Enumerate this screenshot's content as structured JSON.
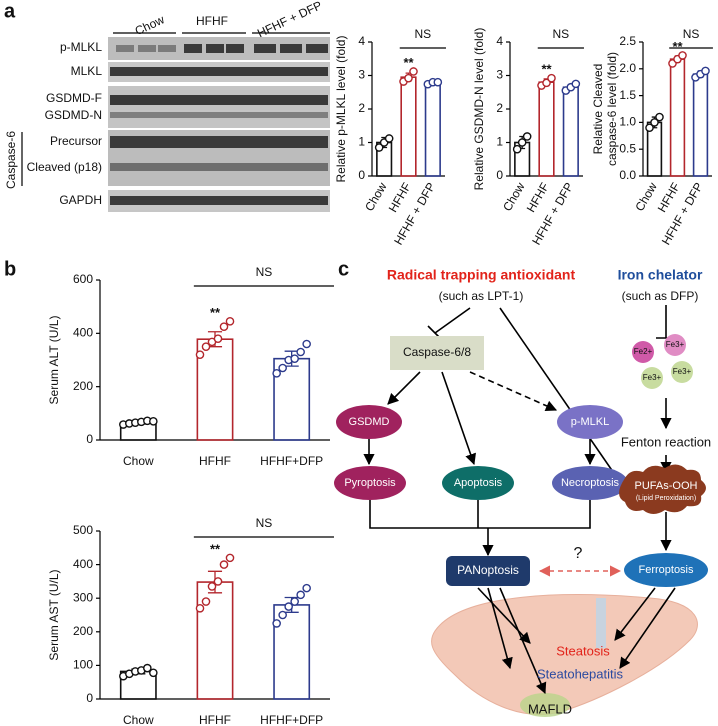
{
  "panel_labels": [
    "a",
    "b",
    "c"
  ],
  "blot": {
    "groups": [
      "Chow",
      "HFHF",
      "HFHF + DFP"
    ],
    "rows": [
      "p-MLKL",
      "MLKL",
      "GSDMD-F",
      "GSDMD-N",
      "Precursor",
      "Cleaved (p18)",
      "GAPDH"
    ],
    "side_label": "Caspase-6"
  },
  "chart_data": [
    {
      "type": "bar",
      "ylabel": [
        "Relative p-MLKL level (fold)"
      ],
      "categories": [
        "Chow",
        "HFHF",
        "HFHF + DFP"
      ],
      "values": [
        1.0,
        2.95,
        2.78
      ],
      "errors": [
        0.15,
        0.12,
        0.04
      ],
      "points": [
        [
          0.85,
          1.0,
          1.12
        ],
        [
          2.82,
          2.92,
          3.12
        ],
        [
          2.74,
          2.8,
          2.8
        ]
      ],
      "colors": [
        "#111111",
        "#b3262c",
        "#2c3a8c"
      ],
      "ylim": [
        0,
        4
      ],
      "yticks": [
        0,
        1,
        2,
        3,
        4
      ],
      "significance": [
        null,
        "**",
        null
      ],
      "bracket_label": "NS"
    },
    {
      "type": "bar",
      "ylabel": [
        "Relative GSDMD-N level (fold)"
      ],
      "categories": [
        "Chow",
        "HFHF",
        "HFHF + DFP"
      ],
      "values": [
        1.0,
        2.8,
        2.65
      ],
      "errors": [
        0.18,
        0.1,
        0.08
      ],
      "points": [
        [
          0.8,
          1.0,
          1.18
        ],
        [
          2.7,
          2.78,
          2.92
        ],
        [
          2.55,
          2.65,
          2.75
        ]
      ],
      "colors": [
        "#111111",
        "#b3262c",
        "#2c3a8c"
      ],
      "ylim": [
        0,
        4
      ],
      "yticks": [
        0,
        1,
        2,
        3,
        4
      ],
      "significance": [
        null,
        "**",
        null
      ],
      "bracket_label": "NS"
    },
    {
      "type": "bar",
      "ylabel": [
        "Relative Cleaved",
        "caspase-6 level (fold)"
      ],
      "categories": [
        "Chow",
        "HFHF",
        "HFHF + DFP"
      ],
      "values": [
        1.0,
        2.18,
        1.9
      ],
      "errors": [
        0.1,
        0.06,
        0.06
      ],
      "points": [
        [
          0.9,
          1.0,
          1.1
        ],
        [
          2.1,
          2.18,
          2.25
        ],
        [
          1.84,
          1.9,
          1.96
        ]
      ],
      "colors": [
        "#111111",
        "#b3262c",
        "#2c3a8c"
      ],
      "ylim": [
        0,
        2.5
      ],
      "yticks": [
        {
          "value": 0,
          "label": "0.0"
        },
        0.5,
        {
          "value": 1,
          "label": "1.0"
        },
        1.5,
        {
          "value": 2,
          "label": "2.0"
        },
        2.5
      ],
      "significance": [
        null,
        "**",
        null
      ],
      "bracket_label": "NS"
    },
    {
      "type": "bar",
      "ylabel": [
        "Serum ALT (U/L)"
      ],
      "categories": [
        "Chow",
        "HFHF",
        "HFHF+DFP"
      ],
      "values": [
        65,
        378,
        305
      ],
      "errors": [
        5,
        28,
        28
      ],
      "points": [
        [
          58,
          62,
          65,
          68,
          72,
          70
        ],
        [
          320,
          350,
          368,
          380,
          425,
          445
        ],
        [
          250,
          270,
          300,
          305,
          330,
          360
        ]
      ],
      "colors": [
        "#111111",
        "#b3262c",
        "#2c3a8c"
      ],
      "ylim": [
        0,
        600
      ],
      "yticks": [
        0,
        200,
        400,
        600
      ],
      "significance": [
        null,
        "**",
        null
      ],
      "bracket_label": "NS"
    },
    {
      "type": "bar",
      "ylabel": [
        "Serum AST (U/L)"
      ],
      "categories": [
        "Chow",
        "HFHF",
        "HFHF+DFP"
      ],
      "values": [
        82,
        348,
        280
      ],
      "errors": [
        7,
        32,
        22
      ],
      "points": [
        [
          68,
          75,
          82,
          85,
          92,
          78
        ],
        [
          270,
          290,
          335,
          350,
          400,
          420
        ],
        [
          225,
          250,
          275,
          290,
          310,
          330
        ]
      ],
      "colors": [
        "#111111",
        "#b3262c",
        "#2c3a8c"
      ],
      "ylim": [
        0,
        500
      ],
      "yticks": [
        0,
        100,
        200,
        300,
        400,
        500
      ],
      "significance": [
        null,
        "**",
        null
      ],
      "bracket_label": "NS"
    }
  ],
  "diagram": {
    "antioxidant": "Radical trapping antioxidant",
    "antioxidant_example": "(such as LPT-1)",
    "chelator": "Iron chelator",
    "chelator_example": "(such as DFP)",
    "caspase": "Caspase-6/8",
    "gsdmd": "GSDMD",
    "pmlkl": "p-MLKL",
    "pyroptosis": "Pyroptosis",
    "apoptosis": "Apoptosis",
    "necroptosis": "Necroptosis",
    "panoptosis": "PANoptosis",
    "question": "?",
    "ferroptosis": "Ferroptosis",
    "iron": [
      "Fe2+",
      "Fe3+",
      "Fe3+",
      "Fe3+"
    ],
    "fenton": "Fenton reaction",
    "pufa": "PUFAs-OOH",
    "pufa_note": "(Lipid Peroxidation)",
    "steatosis": "Steatosis",
    "steatohepatitis": "Steatohepatitis",
    "mafld": "MAFLD"
  }
}
